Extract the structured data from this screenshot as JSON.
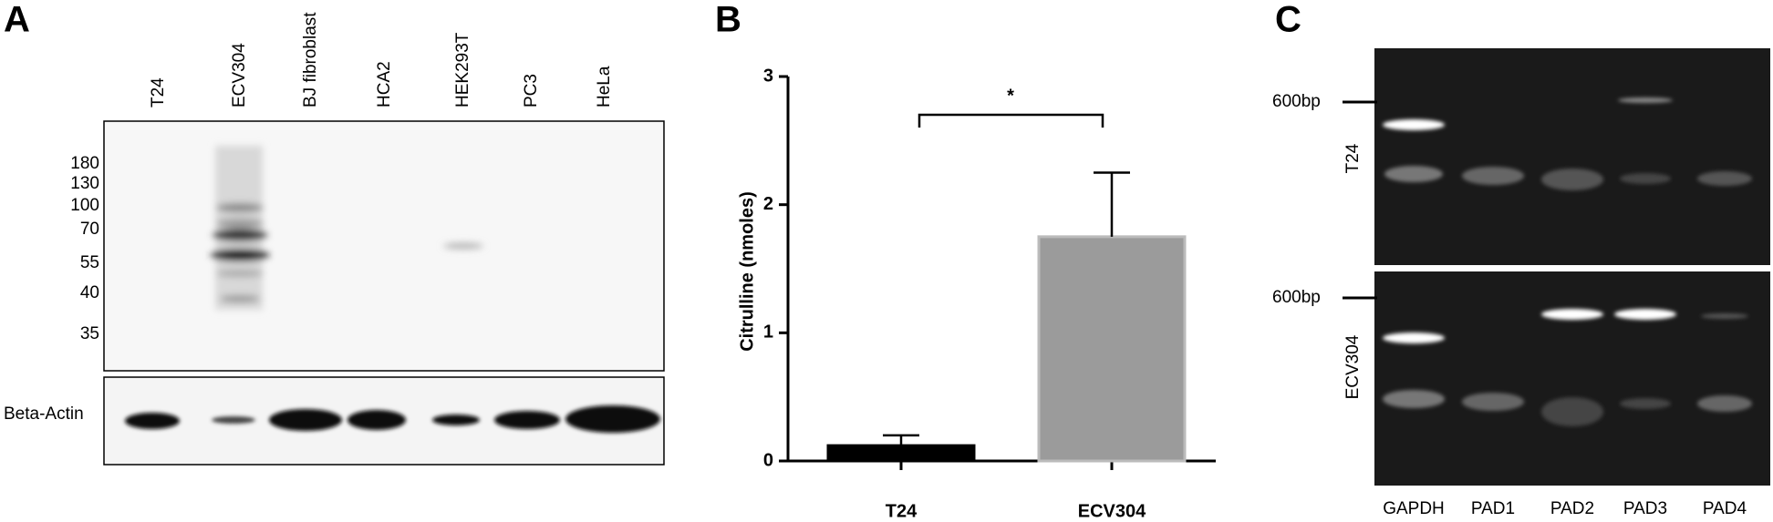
{
  "panels": {
    "a": "A",
    "b": "B",
    "c": "C"
  },
  "blot": {
    "lanes": [
      "T24",
      "ECV304",
      "BJ fibroblast",
      "HCA2",
      "HEK293T",
      "PC3",
      "HeLa"
    ],
    "markers": [
      180,
      130,
      100,
      70,
      55,
      40,
      35
    ],
    "loading_label": "Beta-Actin"
  },
  "chart_data": {
    "type": "bar",
    "ylabel": "Citrulline (nmoles)",
    "categories": [
      "T24",
      "ECV304"
    ],
    "values": [
      0.12,
      1.75
    ],
    "errors": [
      0.08,
      0.5
    ],
    "colors": [
      "#000000",
      "#9b9b9b"
    ],
    "ylim": [
      0,
      3
    ],
    "yticks": [
      0,
      1,
      2,
      3
    ],
    "annotation": "*"
  },
  "gel": {
    "size_marker": "600bp",
    "rows": [
      "T24",
      "ECV304"
    ],
    "lanes": [
      "GAPDH",
      "PAD1",
      "PAD2",
      "PAD3",
      "PAD4"
    ]
  }
}
